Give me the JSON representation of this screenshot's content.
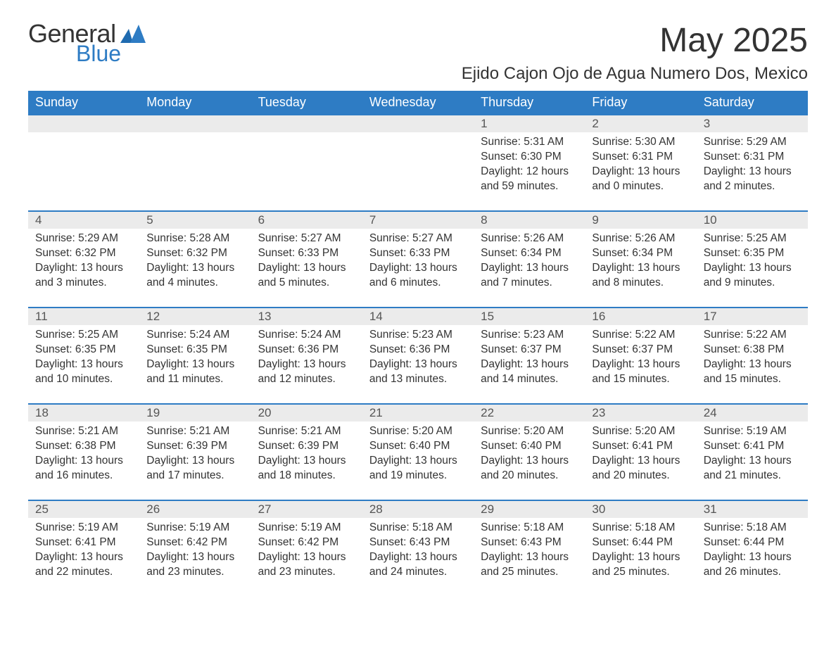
{
  "logo": {
    "text1": "General",
    "text2": "Blue",
    "color_dark": "#333333",
    "color_blue": "#2e7cc4"
  },
  "title": "May 2025",
  "location": "Ejido Cajon Ojo de Agua Numero Dos, Mexico",
  "styling": {
    "header_bg": "#2e7cc4",
    "header_text": "#ffffff",
    "daynum_bg": "#ebebeb",
    "daynum_border": "#2e7cc4",
    "body_text": "#333333",
    "page_bg": "#ffffff",
    "font_family": "Arial",
    "title_fontsize": 48,
    "location_fontsize": 24,
    "header_fontsize": 18,
    "cell_fontsize": 15.5
  },
  "days_of_week": [
    "Sunday",
    "Monday",
    "Tuesday",
    "Wednesday",
    "Thursday",
    "Friday",
    "Saturday"
  ],
  "weeks": [
    [
      null,
      null,
      null,
      null,
      {
        "n": "1",
        "sunrise": "Sunrise: 5:31 AM",
        "sunset": "Sunset: 6:30 PM",
        "day1": "Daylight: 12 hours",
        "day2": "and 59 minutes."
      },
      {
        "n": "2",
        "sunrise": "Sunrise: 5:30 AM",
        "sunset": "Sunset: 6:31 PM",
        "day1": "Daylight: 13 hours",
        "day2": "and 0 minutes."
      },
      {
        "n": "3",
        "sunrise": "Sunrise: 5:29 AM",
        "sunset": "Sunset: 6:31 PM",
        "day1": "Daylight: 13 hours",
        "day2": "and 2 minutes."
      }
    ],
    [
      {
        "n": "4",
        "sunrise": "Sunrise: 5:29 AM",
        "sunset": "Sunset: 6:32 PM",
        "day1": "Daylight: 13 hours",
        "day2": "and 3 minutes."
      },
      {
        "n": "5",
        "sunrise": "Sunrise: 5:28 AM",
        "sunset": "Sunset: 6:32 PM",
        "day1": "Daylight: 13 hours",
        "day2": "and 4 minutes."
      },
      {
        "n": "6",
        "sunrise": "Sunrise: 5:27 AM",
        "sunset": "Sunset: 6:33 PM",
        "day1": "Daylight: 13 hours",
        "day2": "and 5 minutes."
      },
      {
        "n": "7",
        "sunrise": "Sunrise: 5:27 AM",
        "sunset": "Sunset: 6:33 PM",
        "day1": "Daylight: 13 hours",
        "day2": "and 6 minutes."
      },
      {
        "n": "8",
        "sunrise": "Sunrise: 5:26 AM",
        "sunset": "Sunset: 6:34 PM",
        "day1": "Daylight: 13 hours",
        "day2": "and 7 minutes."
      },
      {
        "n": "9",
        "sunrise": "Sunrise: 5:26 AM",
        "sunset": "Sunset: 6:34 PM",
        "day1": "Daylight: 13 hours",
        "day2": "and 8 minutes."
      },
      {
        "n": "10",
        "sunrise": "Sunrise: 5:25 AM",
        "sunset": "Sunset: 6:35 PM",
        "day1": "Daylight: 13 hours",
        "day2": "and 9 minutes."
      }
    ],
    [
      {
        "n": "11",
        "sunrise": "Sunrise: 5:25 AM",
        "sunset": "Sunset: 6:35 PM",
        "day1": "Daylight: 13 hours",
        "day2": "and 10 minutes."
      },
      {
        "n": "12",
        "sunrise": "Sunrise: 5:24 AM",
        "sunset": "Sunset: 6:35 PM",
        "day1": "Daylight: 13 hours",
        "day2": "and 11 minutes."
      },
      {
        "n": "13",
        "sunrise": "Sunrise: 5:24 AM",
        "sunset": "Sunset: 6:36 PM",
        "day1": "Daylight: 13 hours",
        "day2": "and 12 minutes."
      },
      {
        "n": "14",
        "sunrise": "Sunrise: 5:23 AM",
        "sunset": "Sunset: 6:36 PM",
        "day1": "Daylight: 13 hours",
        "day2": "and 13 minutes."
      },
      {
        "n": "15",
        "sunrise": "Sunrise: 5:23 AM",
        "sunset": "Sunset: 6:37 PM",
        "day1": "Daylight: 13 hours",
        "day2": "and 14 minutes."
      },
      {
        "n": "16",
        "sunrise": "Sunrise: 5:22 AM",
        "sunset": "Sunset: 6:37 PM",
        "day1": "Daylight: 13 hours",
        "day2": "and 15 minutes."
      },
      {
        "n": "17",
        "sunrise": "Sunrise: 5:22 AM",
        "sunset": "Sunset: 6:38 PM",
        "day1": "Daylight: 13 hours",
        "day2": "and 15 minutes."
      }
    ],
    [
      {
        "n": "18",
        "sunrise": "Sunrise: 5:21 AM",
        "sunset": "Sunset: 6:38 PM",
        "day1": "Daylight: 13 hours",
        "day2": "and 16 minutes."
      },
      {
        "n": "19",
        "sunrise": "Sunrise: 5:21 AM",
        "sunset": "Sunset: 6:39 PM",
        "day1": "Daylight: 13 hours",
        "day2": "and 17 minutes."
      },
      {
        "n": "20",
        "sunrise": "Sunrise: 5:21 AM",
        "sunset": "Sunset: 6:39 PM",
        "day1": "Daylight: 13 hours",
        "day2": "and 18 minutes."
      },
      {
        "n": "21",
        "sunrise": "Sunrise: 5:20 AM",
        "sunset": "Sunset: 6:40 PM",
        "day1": "Daylight: 13 hours",
        "day2": "and 19 minutes."
      },
      {
        "n": "22",
        "sunrise": "Sunrise: 5:20 AM",
        "sunset": "Sunset: 6:40 PM",
        "day1": "Daylight: 13 hours",
        "day2": "and 20 minutes."
      },
      {
        "n": "23",
        "sunrise": "Sunrise: 5:20 AM",
        "sunset": "Sunset: 6:41 PM",
        "day1": "Daylight: 13 hours",
        "day2": "and 20 minutes."
      },
      {
        "n": "24",
        "sunrise": "Sunrise: 5:19 AM",
        "sunset": "Sunset: 6:41 PM",
        "day1": "Daylight: 13 hours",
        "day2": "and 21 minutes."
      }
    ],
    [
      {
        "n": "25",
        "sunrise": "Sunrise: 5:19 AM",
        "sunset": "Sunset: 6:41 PM",
        "day1": "Daylight: 13 hours",
        "day2": "and 22 minutes."
      },
      {
        "n": "26",
        "sunrise": "Sunrise: 5:19 AM",
        "sunset": "Sunset: 6:42 PM",
        "day1": "Daylight: 13 hours",
        "day2": "and 23 minutes."
      },
      {
        "n": "27",
        "sunrise": "Sunrise: 5:19 AM",
        "sunset": "Sunset: 6:42 PM",
        "day1": "Daylight: 13 hours",
        "day2": "and 23 minutes."
      },
      {
        "n": "28",
        "sunrise": "Sunrise: 5:18 AM",
        "sunset": "Sunset: 6:43 PM",
        "day1": "Daylight: 13 hours",
        "day2": "and 24 minutes."
      },
      {
        "n": "29",
        "sunrise": "Sunrise: 5:18 AM",
        "sunset": "Sunset: 6:43 PM",
        "day1": "Daylight: 13 hours",
        "day2": "and 25 minutes."
      },
      {
        "n": "30",
        "sunrise": "Sunrise: 5:18 AM",
        "sunset": "Sunset: 6:44 PM",
        "day1": "Daylight: 13 hours",
        "day2": "and 25 minutes."
      },
      {
        "n": "31",
        "sunrise": "Sunrise: 5:18 AM",
        "sunset": "Sunset: 6:44 PM",
        "day1": "Daylight: 13 hours",
        "day2": "and 26 minutes."
      }
    ]
  ]
}
